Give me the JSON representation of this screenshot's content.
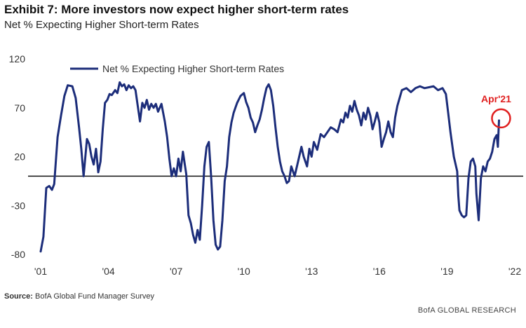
{
  "header": {
    "title": "Exhibit 7: More investors now expect higher short-term rates",
    "subtitle": "Net % Expecting Higher Short-term Rates"
  },
  "footer": {
    "source_label": "Source:",
    "source_text": "BofA Global Fund Manager Survey",
    "brand": "BofA GLOBAL RESEARCH"
  },
  "colors": {
    "series": "#1c2d7a",
    "highlight": "#e02020",
    "zero_line": "#111111",
    "text": "#333333"
  },
  "chart_data": {
    "type": "line",
    "title": "Exhibit 7: More investors now expect higher short-term rates",
    "subtitle": "Net % Expecting Higher Short-term Rates",
    "xlabel": "",
    "ylabel": "",
    "xlim": [
      2001.0,
      2022.0
    ],
    "ylim": [
      -80,
      120
    ],
    "y_ticks": [
      120,
      70,
      20,
      -30,
      -80
    ],
    "x_ticks": [
      {
        "value": 2001,
        "label": "'01"
      },
      {
        "value": 2004,
        "label": "'04"
      },
      {
        "value": 2007,
        "label": "'07"
      },
      {
        "value": 2010,
        "label": "'10"
      },
      {
        "value": 2013,
        "label": "'13"
      },
      {
        "value": 2016,
        "label": "'16"
      },
      {
        "value": 2019,
        "label": "'19"
      },
      {
        "value": 2022,
        "label": "'22"
      }
    ],
    "grid": false,
    "zero_line": 0,
    "legend": {
      "position": "top-left"
    },
    "annotation": {
      "label": "Apr'21",
      "x": 2021.3,
      "y": 57
    },
    "series": [
      {
        "name": "Net % Expecting Higher Short-term Rates",
        "points": [
          [
            2001.0,
            -77
          ],
          [
            2001.12,
            -62
          ],
          [
            2001.25,
            -12
          ],
          [
            2001.38,
            -10
          ],
          [
            2001.5,
            -14
          ],
          [
            2001.6,
            -8
          ],
          [
            2001.75,
            40
          ],
          [
            2001.9,
            62
          ],
          [
            2002.05,
            82
          ],
          [
            2002.2,
            93
          ],
          [
            2002.4,
            92
          ],
          [
            2002.55,
            80
          ],
          [
            2002.7,
            50
          ],
          [
            2002.8,
            28
          ],
          [
            2002.9,
            0
          ],
          [
            2003.05,
            38
          ],
          [
            2003.15,
            33
          ],
          [
            2003.25,
            20
          ],
          [
            2003.35,
            12
          ],
          [
            2003.45,
            28
          ],
          [
            2003.55,
            4
          ],
          [
            2003.65,
            15
          ],
          [
            2003.75,
            48
          ],
          [
            2003.85,
            75
          ],
          [
            2003.95,
            78
          ],
          [
            2004.05,
            84
          ],
          [
            2004.15,
            83
          ],
          [
            2004.3,
            88
          ],
          [
            2004.4,
            85
          ],
          [
            2004.5,
            96
          ],
          [
            2004.6,
            92
          ],
          [
            2004.7,
            94
          ],
          [
            2004.8,
            88
          ],
          [
            2004.9,
            93
          ],
          [
            2005.0,
            90
          ],
          [
            2005.1,
            92
          ],
          [
            2005.2,
            88
          ],
          [
            2005.3,
            72
          ],
          [
            2005.4,
            56
          ],
          [
            2005.5,
            75
          ],
          [
            2005.6,
            70
          ],
          [
            2005.7,
            78
          ],
          [
            2005.8,
            68
          ],
          [
            2005.9,
            74
          ],
          [
            2006.0,
            70
          ],
          [
            2006.1,
            74
          ],
          [
            2006.2,
            66
          ],
          [
            2006.35,
            74
          ],
          [
            2006.5,
            56
          ],
          [
            2006.6,
            40
          ],
          [
            2006.7,
            18
          ],
          [
            2006.8,
            0
          ],
          [
            2006.9,
            8
          ],
          [
            2007.0,
            0
          ],
          [
            2007.1,
            18
          ],
          [
            2007.2,
            5
          ],
          [
            2007.3,
            25
          ],
          [
            2007.45,
            2
          ],
          [
            2007.55,
            -40
          ],
          [
            2007.65,
            -48
          ],
          [
            2007.75,
            -60
          ],
          [
            2007.85,
            -68
          ],
          [
            2007.95,
            -55
          ],
          [
            2008.05,
            -65
          ],
          [
            2008.15,
            -30
          ],
          [
            2008.25,
            10
          ],
          [
            2008.35,
            30
          ],
          [
            2008.45,
            35
          ],
          [
            2008.55,
            0
          ],
          [
            2008.65,
            -45
          ],
          [
            2008.75,
            -70
          ],
          [
            2008.85,
            -75
          ],
          [
            2008.95,
            -72
          ],
          [
            2009.05,
            -45
          ],
          [
            2009.15,
            -5
          ],
          [
            2009.25,
            10
          ],
          [
            2009.35,
            40
          ],
          [
            2009.45,
            55
          ],
          [
            2009.55,
            65
          ],
          [
            2009.7,
            75
          ],
          [
            2009.85,
            82
          ],
          [
            2010.0,
            85
          ],
          [
            2010.1,
            76
          ],
          [
            2010.2,
            70
          ],
          [
            2010.3,
            60
          ],
          [
            2010.4,
            55
          ],
          [
            2010.5,
            45
          ],
          [
            2010.6,
            52
          ],
          [
            2010.7,
            58
          ],
          [
            2010.8,
            68
          ],
          [
            2010.9,
            80
          ],
          [
            2011.0,
            90
          ],
          [
            2011.1,
            94
          ],
          [
            2011.2,
            88
          ],
          [
            2011.3,
            72
          ],
          [
            2011.4,
            50
          ],
          [
            2011.5,
            30
          ],
          [
            2011.6,
            15
          ],
          [
            2011.7,
            5
          ],
          [
            2011.8,
            0
          ],
          [
            2011.9,
            -7
          ],
          [
            2012.0,
            -5
          ],
          [
            2012.1,
            10
          ],
          [
            2012.25,
            0
          ],
          [
            2012.4,
            15
          ],
          [
            2012.55,
            30
          ],
          [
            2012.65,
            20
          ],
          [
            2012.8,
            10
          ],
          [
            2012.9,
            28
          ],
          [
            2013.0,
            20
          ],
          [
            2013.1,
            35
          ],
          [
            2013.25,
            27
          ],
          [
            2013.4,
            43
          ],
          [
            2013.55,
            40
          ],
          [
            2013.7,
            45
          ],
          [
            2013.85,
            50
          ],
          [
            2014.0,
            48
          ],
          [
            2014.15,
            45
          ],
          [
            2014.3,
            58
          ],
          [
            2014.4,
            55
          ],
          [
            2014.5,
            65
          ],
          [
            2014.6,
            60
          ],
          [
            2014.7,
            72
          ],
          [
            2014.8,
            66
          ],
          [
            2014.9,
            77
          ],
          [
            2015.0,
            68
          ],
          [
            2015.1,
            62
          ],
          [
            2015.2,
            52
          ],
          [
            2015.3,
            65
          ],
          [
            2015.4,
            58
          ],
          [
            2015.5,
            70
          ],
          [
            2015.6,
            62
          ],
          [
            2015.7,
            48
          ],
          [
            2015.8,
            56
          ],
          [
            2015.9,
            65
          ],
          [
            2016.0,
            55
          ],
          [
            2016.1,
            30
          ],
          [
            2016.2,
            38
          ],
          [
            2016.3,
            45
          ],
          [
            2016.4,
            56
          ],
          [
            2016.5,
            45
          ],
          [
            2016.6,
            40
          ],
          [
            2016.7,
            60
          ],
          [
            2016.8,
            72
          ],
          [
            2016.9,
            80
          ],
          [
            2017.0,
            88
          ],
          [
            2017.2,
            90
          ],
          [
            2017.4,
            86
          ],
          [
            2017.6,
            90
          ],
          [
            2017.8,
            92
          ],
          [
            2018.0,
            90
          ],
          [
            2018.2,
            91
          ],
          [
            2018.4,
            92
          ],
          [
            2018.6,
            88
          ],
          [
            2018.8,
            90
          ],
          [
            2018.95,
            84
          ],
          [
            2019.05,
            65
          ],
          [
            2019.15,
            45
          ],
          [
            2019.3,
            20
          ],
          [
            2019.45,
            5
          ],
          [
            2019.5,
            -20
          ],
          [
            2019.55,
            -35
          ],
          [
            2019.65,
            -40
          ],
          [
            2019.75,
            -42
          ],
          [
            2019.85,
            -40
          ],
          [
            2019.95,
            -2
          ],
          [
            2020.05,
            15
          ],
          [
            2020.15,
            18
          ],
          [
            2020.25,
            10
          ],
          [
            2020.3,
            -18
          ],
          [
            2020.4,
            -45
          ],
          [
            2020.5,
            -2
          ],
          [
            2020.6,
            10
          ],
          [
            2020.7,
            5
          ],
          [
            2020.8,
            15
          ],
          [
            2020.9,
            18
          ],
          [
            2021.0,
            25
          ],
          [
            2021.1,
            38
          ],
          [
            2021.2,
            42
          ],
          [
            2021.25,
            30
          ],
          [
            2021.3,
            57
          ]
        ]
      }
    ]
  }
}
